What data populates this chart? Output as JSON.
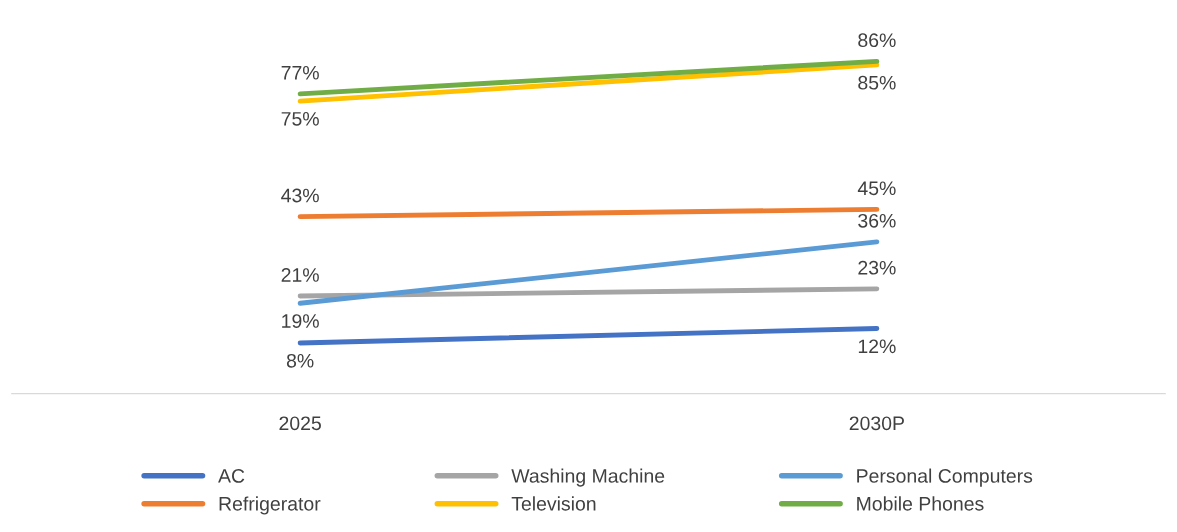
{
  "chart_data": {
    "type": "line",
    "categories": [
      "2025",
      "2030P"
    ],
    "legend": "bottom",
    "grid": false,
    "marker": "none",
    "line_style": "solid",
    "series": [
      {
        "name": "AC",
        "color": "#4472c4",
        "values": [
          8,
          12
        ],
        "value_labels": [
          "8%",
          "12%"
        ]
      },
      {
        "name": "Refrigerator",
        "color": "#ed7d31",
        "values": [
          43,
          45
        ],
        "value_labels": [
          "43%",
          "45%"
        ]
      },
      {
        "name": "Washing Machine",
        "color": "#a5a5a5",
        "values": [
          21,
          23
        ],
        "value_labels": [
          "21%",
          "23%"
        ]
      },
      {
        "name": "Television",
        "color": "#ffc000",
        "values": [
          75,
          85
        ],
        "value_labels": [
          "75%",
          "85%"
        ]
      },
      {
        "name": "Personal Computers",
        "color": "#5b9bd5",
        "values": [
          19,
          36
        ],
        "value_labels": [
          "19%",
          "36%"
        ]
      },
      {
        "name": "Mobile Phones",
        "color": "#70ad47",
        "values": [
          77,
          86
        ],
        "value_labels": [
          "77%",
          "86%"
        ]
      }
    ]
  }
}
